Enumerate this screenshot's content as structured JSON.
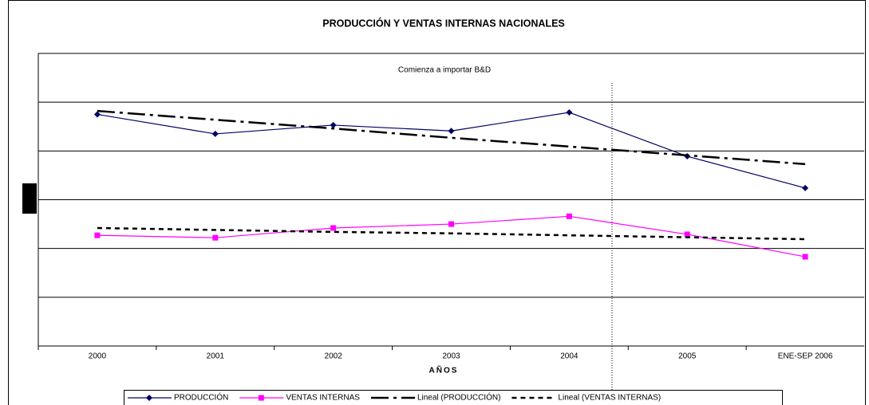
{
  "chart_data": {
    "type": "line",
    "title": "PRODUCCIÓN Y VENTAS INTERNAS NACIONALES",
    "x_label": "AÑOS",
    "annotation": "Comienza a importar B&D",
    "categories": [
      "2000",
      "2001",
      "2002",
      "2003",
      "2004",
      "2005",
      "ENE-SEP 2006"
    ],
    "series": [
      {
        "name": "PRODUCCIÓN",
        "color": "#000066",
        "marker": "diamond",
        "dash": "solid",
        "values": [
          4.75,
          4.35,
          4.53,
          4.41,
          4.79,
          3.89,
          3.24
        ]
      },
      {
        "name": "VENTAS INTERNAS",
        "color": "#ff00ff",
        "marker": "square",
        "dash": "solid",
        "values": [
          2.27,
          2.22,
          2.42,
          2.5,
          2.66,
          2.29,
          1.83
        ]
      },
      {
        "name": "Lineal (PRODUCCIÓN)",
        "color": "#000000",
        "marker": "none",
        "dash": "dashdot",
        "values": [
          4.82,
          4.64,
          4.46,
          4.27,
          4.09,
          3.91,
          3.73
        ]
      },
      {
        "name": "Lineal (VENTAS INTERNAS)",
        "color": "#000000",
        "marker": "none",
        "dash": "dotted",
        "values": [
          2.42,
          2.38,
          2.34,
          2.31,
          2.27,
          2.23,
          2.19
        ]
      }
    ],
    "ylim": [
      0,
      6
    ],
    "yticks": [
      0,
      1,
      2,
      3,
      4,
      5,
      6
    ],
    "grid": true,
    "legend": "bottom"
  }
}
